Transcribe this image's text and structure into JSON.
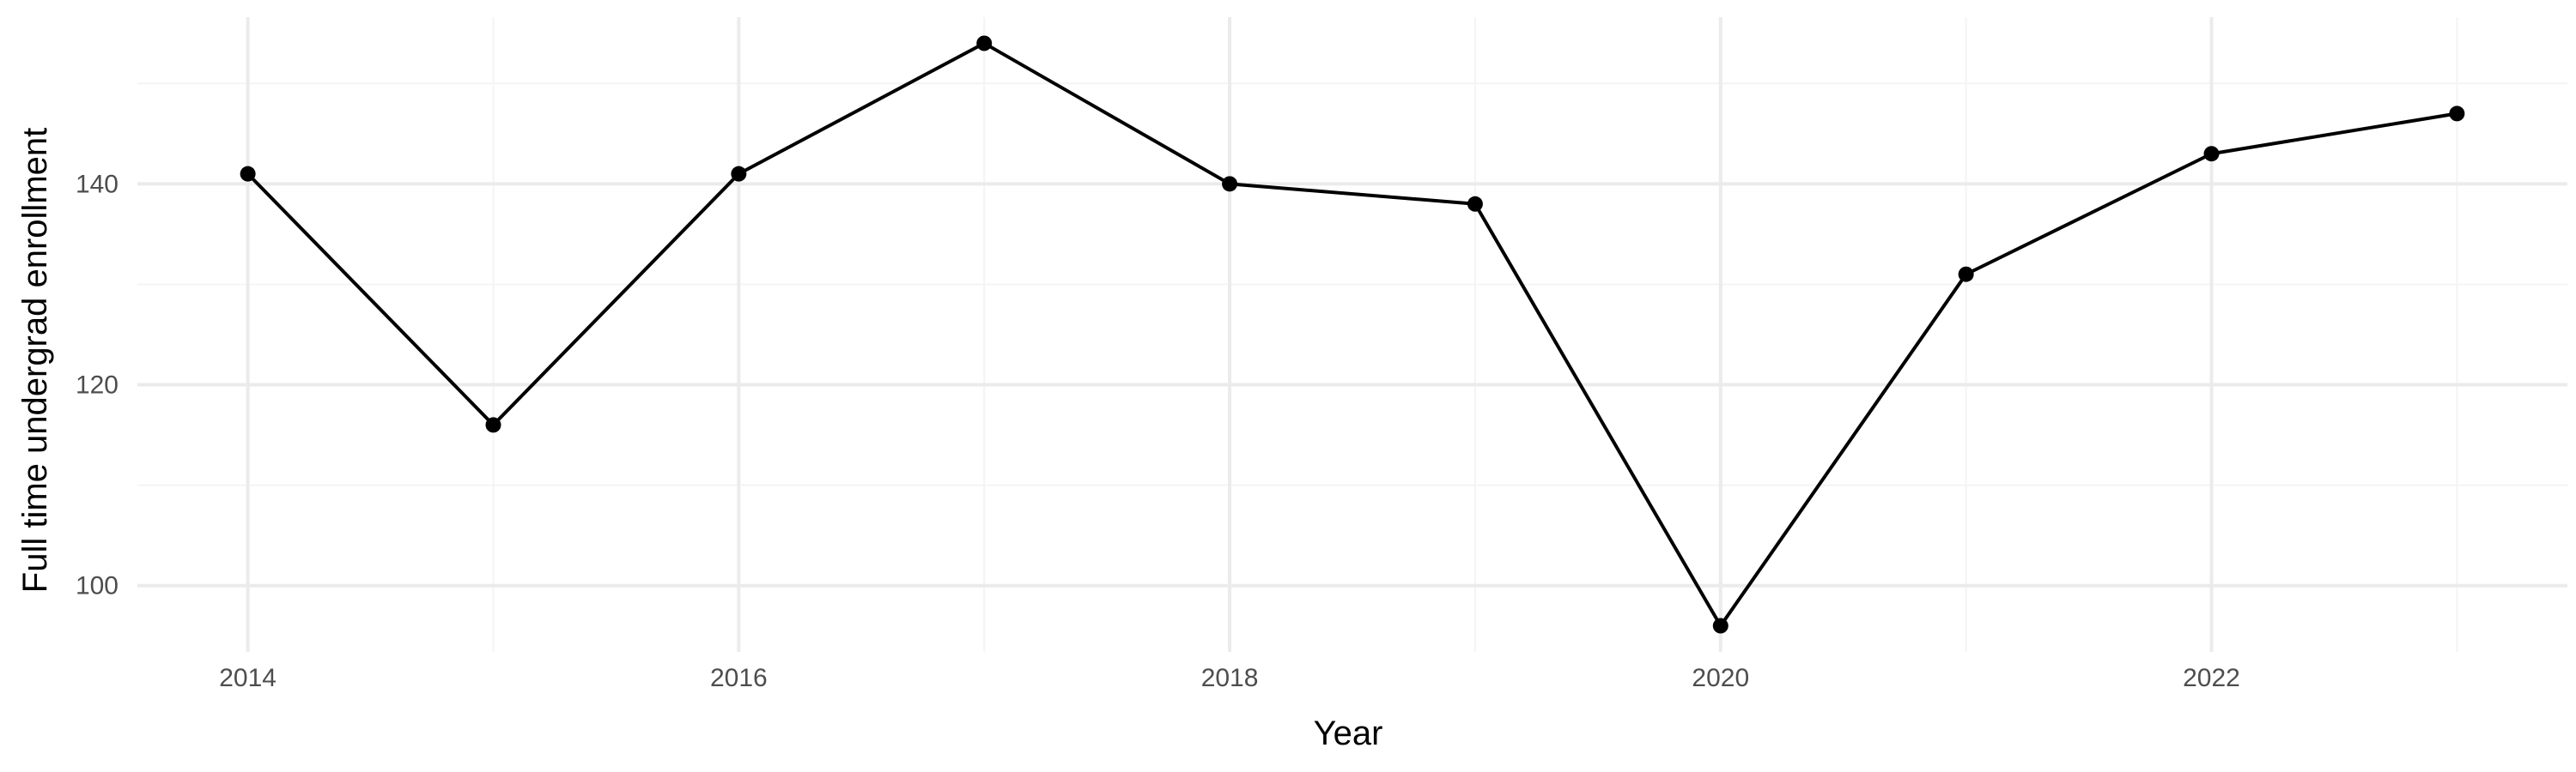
{
  "chart_data": {
    "type": "line",
    "title": "",
    "xlabel": "Year",
    "ylabel": "Full time undergrad enrollment",
    "x": [
      2014,
      2015,
      2016,
      2017,
      2018,
      2019,
      2020,
      2021,
      2022,
      2023
    ],
    "series": [
      {
        "values": [
          141,
          116,
          141,
          154,
          140,
          138,
          96,
          131,
          143,
          147
        ]
      }
    ],
    "xlim": [
      2013.55,
      2023.45
    ],
    "ylim": [
      93.4,
      156.6
    ],
    "x_ticks": [
      2014,
      2016,
      2018,
      2020,
      2022
    ],
    "x_tick_labels": [
      "2014",
      "2016",
      "2018",
      "2020",
      "2022"
    ],
    "x_minor_ticks": [
      2015,
      2017,
      2019,
      2021,
      2023
    ],
    "y_ticks": [
      100,
      120,
      140
    ],
    "y_tick_labels": [
      "100",
      "120",
      "140"
    ],
    "y_minor_ticks": [
      110,
      130,
      150
    ],
    "grid": true,
    "legend": "none",
    "colors": {
      "line": "#000000",
      "point": "#000000",
      "grid_major": "#ebebeb",
      "grid_minor": "#f4f4f4",
      "background": "#ffffff"
    }
  }
}
